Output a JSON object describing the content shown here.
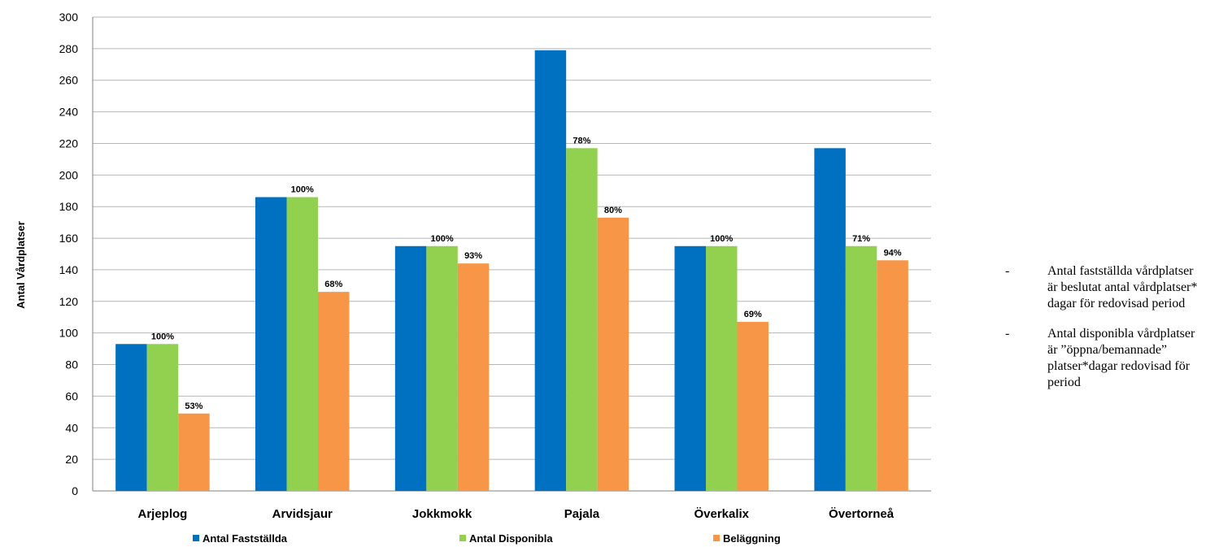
{
  "chart_data": {
    "type": "bar",
    "categories": [
      "Arjeplog",
      "Arvidsjaur",
      "Jokkmokk",
      "Pajala",
      "Överkalix",
      "Övertorneå"
    ],
    "series": [
      {
        "name": "Antal Fastställda",
        "color": "#0070c0",
        "values": [
          93,
          186,
          155,
          279,
          155,
          217
        ],
        "labels": [
          "",
          "",
          "",
          "",
          "",
          ""
        ]
      },
      {
        "name": "Antal Disponibla",
        "color": "#92d050",
        "values": [
          93,
          186,
          155,
          217,
          155,
          155
        ],
        "labels": [
          "100%",
          "100%",
          "100%",
          "78%",
          "100%",
          "71%"
        ]
      },
      {
        "name": "Beläggning",
        "color": "#f79646",
        "values": [
          49,
          126,
          144,
          173,
          107,
          146
        ],
        "labels": [
          "53%",
          "68%",
          "93%",
          "80%",
          "69%",
          "94%"
        ]
      }
    ],
    "ylabel": "Antal Vårdplatser",
    "ylim": [
      0,
      300
    ],
    "yticks": [
      0,
      20,
      40,
      60,
      80,
      100,
      120,
      140,
      160,
      180,
      200,
      220,
      240,
      260,
      280,
      300
    ],
    "grid": true,
    "legend_position": "bottom"
  },
  "notes": [
    {
      "dash": "-",
      "text": "Antal fastställda vårdplatser är beslutat antal vårdplatser* dagar för redovisad period"
    },
    {
      "dash": "-",
      "text": "Antal disponibla vårdplatser är ”öppna/bemannade” platser*dagar redovisad för period"
    }
  ]
}
